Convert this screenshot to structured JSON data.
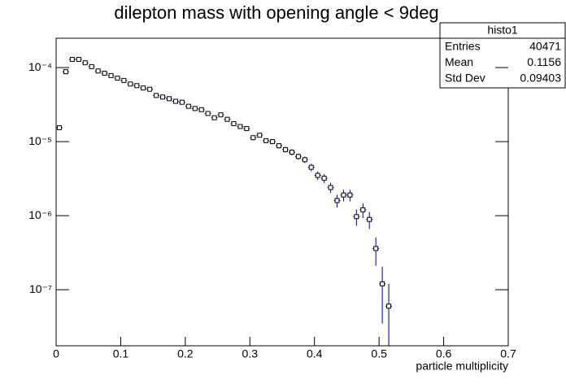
{
  "chart_data": {
    "type": "histogram",
    "title": "dilepton mass with opening angle < 9deg",
    "x_label": "particle multiplicity",
    "bins": [
      0,
      0.01,
      0.02,
      0.03,
      0.04,
      0.05,
      0.06,
      0.07,
      0.08,
      0.09,
      0.1,
      0.11,
      0.12,
      0.13,
      0.14,
      0.15,
      0.16,
      0.17,
      0.18,
      0.19,
      0.2,
      0.21,
      0.22,
      0.23,
      0.24,
      0.25,
      0.26,
      0.27,
      0.28,
      0.29,
      0.3,
      0.31,
      0.32,
      0.33,
      0.34,
      0.35,
      0.36,
      0.37,
      0.38,
      0.39,
      0.4,
      0.41,
      0.42,
      0.43,
      0.44,
      0.45,
      0.46,
      0.47,
      0.48,
      0.49,
      0.5,
      0.51,
      0.52
    ],
    "values": [
      1.54e-05,
      8.8e-05,
      0.000129,
      0.000129,
      0.000116,
      0.000103,
      9e-05,
      8.4e-05,
      7.8e-05,
      7.2e-05,
      6.7e-05,
      6e-05,
      5.7e-05,
      5.3e-05,
      5.1e-05,
      4.2e-05,
      4e-05,
      3.8e-05,
      3.5e-05,
      3.4e-05,
      3e-05,
      2.8e-05,
      2.7e-05,
      2.4e-05,
      2.1e-05,
      2.3e-05,
      2e-05,
      1.75e-05,
      1.6e-05,
      1.5e-05,
      1.13e-05,
      1.22e-05,
      1.03e-05,
      1e-05,
      8.8e-06,
      7.8e-06,
      7.2e-06,
      6.3e-06,
      5.7e-06,
      4.5e-06,
      3.5e-06,
      3.2e-06,
      2.4e-06,
      1.6e-06,
      1.9e-06,
      1.9e-06,
      9.7e-07,
      1.2e-06,
      8.9e-07,
      3.6e-07,
      1.2e-07,
      6e-08
    ],
    "errors": [
      9.6e-07,
      2.3e-06,
      2.8e-06,
      2.8e-06,
      2.6e-06,
      2.5e-06,
      2.3e-06,
      2.2e-06,
      2.2e-06,
      2.1e-06,
      2e-06,
      1.9e-06,
      1.8e-06,
      1.8e-06,
      1.7e-06,
      1.6e-06,
      1.5e-06,
      1.5e-06,
      1.4e-06,
      1.4e-06,
      1.3e-06,
      1.3e-06,
      1.3e-06,
      1.2e-06,
      1.1e-06,
      1.2e-06,
      1.1e-06,
      1e-06,
      9.8e-07,
      9.5e-07,
      8.2e-07,
      8.6e-07,
      7.9e-07,
      7.7e-07,
      7.3e-07,
      6.8e-07,
      6.6e-07,
      6.1e-07,
      5.8e-07,
      5.2e-07,
      4.6e-07,
      4.4e-07,
      3.8e-07,
      3.1e-07,
      3.4e-07,
      3.4e-07,
      2.4e-07,
      2.7e-07,
      2.3e-07,
      1.5e-07,
      8.5e-08,
      6e-08
    ],
    "color": "#00007f",
    "marker_color": "#000000",
    "xlim": [
      0,
      0.7
    ],
    "xticks": [
      0,
      0.1,
      0.2,
      0.3,
      0.4,
      0.5,
      0.6,
      0.7
    ],
    "ylim": [
      1.75e-08,
      0.000249
    ],
    "log_y": true,
    "yticks": [
      {
        "value": 1e-07,
        "label": "10⁻⁷"
      },
      {
        "value": 1e-06,
        "label": "10⁻⁶"
      },
      {
        "value": 1e-05,
        "label": "10⁻⁵"
      },
      {
        "value": 0.0001,
        "label": "10⁻⁴"
      }
    ],
    "stats": {
      "title": "histo1",
      "rows": [
        {
          "label": "Entries",
          "value": 40471
        },
        {
          "label": "Mean",
          "value": 0.1156
        },
        {
          "label": "Std Dev",
          "value": 0.09403
        }
      ]
    }
  }
}
